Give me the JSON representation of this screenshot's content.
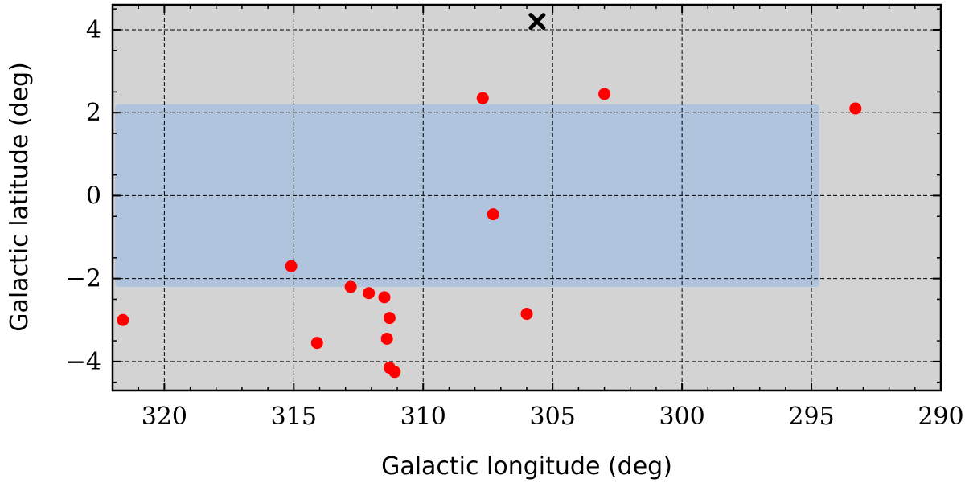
{
  "chart_data": {
    "type": "scatter",
    "xlabel": "Galactic longitude (deg)",
    "ylabel": "Galactic latitude (deg)",
    "xlim": [
      322,
      290
    ],
    "ylim": [
      -4.7,
      4.6
    ],
    "x_axis_reversed": true,
    "xticks": [
      320,
      315,
      310,
      305,
      300,
      295,
      290
    ],
    "yticks": [
      -4,
      -2,
      0,
      2,
      4
    ],
    "ytick_labels": [
      "−4",
      "−2",
      "0",
      "2",
      "4"
    ],
    "grid": true,
    "background_color": "#d3d3d3",
    "survey_region": {
      "l_range": [
        321.9,
        294.7
      ],
      "b_range": [
        -2.2,
        2.2
      ],
      "color": "#b0c4de"
    },
    "marker_color": "#ff0000",
    "points": [
      {
        "l": 321.6,
        "b": -3.0
      },
      {
        "l": 315.1,
        "b": -1.7
      },
      {
        "l": 314.1,
        "b": -3.55
      },
      {
        "l": 312.8,
        "b": -2.2
      },
      {
        "l": 312.1,
        "b": -2.35
      },
      {
        "l": 311.5,
        "b": -2.45
      },
      {
        "l": 311.3,
        "b": -2.95
      },
      {
        "l": 311.4,
        "b": -3.45
      },
      {
        "l": 311.3,
        "b": -4.15
      },
      {
        "l": 311.1,
        "b": -4.25
      },
      {
        "l": 307.7,
        "b": 2.35
      },
      {
        "l": 307.3,
        "b": -0.45
      },
      {
        "l": 306.0,
        "b": -2.85
      },
      {
        "l": 303.0,
        "b": 2.45
      },
      {
        "l": 293.3,
        "b": 2.1
      }
    ],
    "cross_marker": {
      "l": 305.6,
      "b": 4.2,
      "color": "#000000"
    }
  }
}
